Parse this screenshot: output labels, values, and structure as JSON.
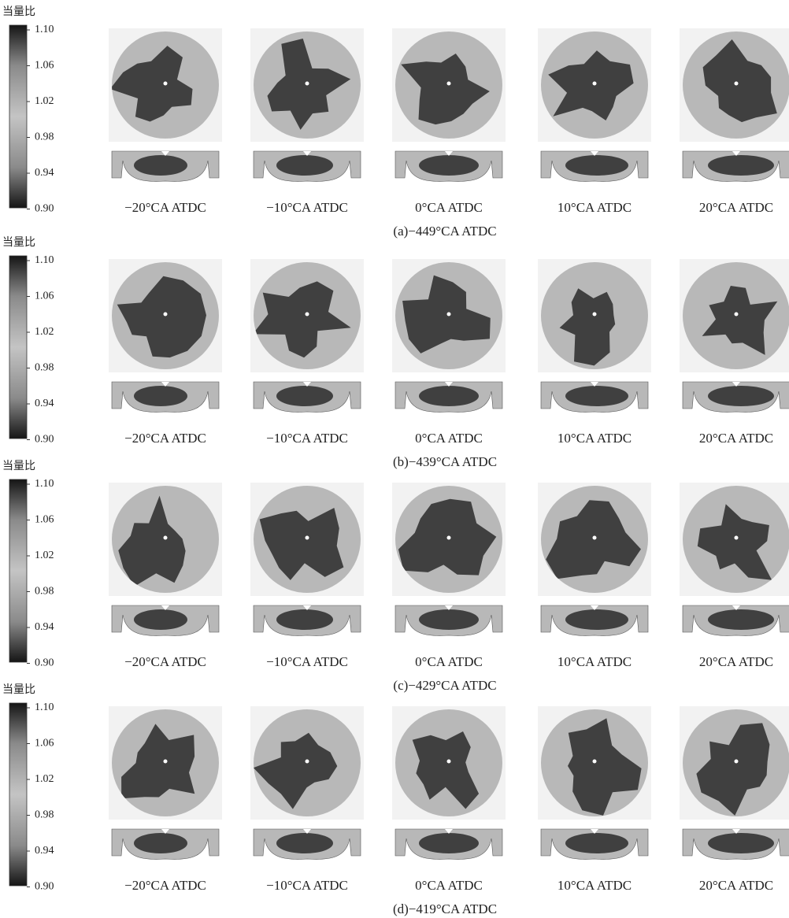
{
  "panels": [
    {
      "colorbar": {
        "title": "当量比",
        "ticks": [
          "1.10",
          "1.06",
          "1.02",
          "0.98",
          "0.94",
          "0.90"
        ]
      },
      "labels": [
        "−20°CA ATDC",
        "−10°CA ATDC",
        "0°CA ATDC",
        "10°CA ATDC",
        "20°CA ATDC"
      ],
      "caption": "(a)−449°CA ATDC"
    },
    {
      "colorbar": {
        "title": "当量比",
        "ticks": [
          "1.10",
          "1.06",
          "1.02",
          "0.98",
          "0.94",
          "0.90"
        ]
      },
      "labels": [
        "−20°CA ATDC",
        "−10°CA ATDC",
        "0°CA ATDC",
        "10°CA ATDC",
        "20°CA ATDC"
      ],
      "caption": "(b)−439°CA ATDC"
    },
    {
      "colorbar": {
        "title": "当量比",
        "ticks": [
          "1.10",
          "1.06",
          "1.02",
          "0.98",
          "0.94",
          "0.90"
        ]
      },
      "labels": [
        "−20°CA ATDC",
        "−10°CA ATDC",
        "0°CA ATDC",
        "10°CA ATDC",
        "20°CA ATDC"
      ],
      "caption": "(c)−429°CA ATDC"
    },
    {
      "colorbar": {
        "title": "当量比",
        "ticks": [
          "1.10",
          "1.06",
          "1.02",
          "0.98",
          "0.94",
          "0.90"
        ]
      },
      "labels": [
        "−20°CA ATDC",
        "−10°CA ATDC",
        "0°CA ATDC",
        "10°CA ATDC",
        "20°CA ATDC"
      ],
      "caption": "(d)−419°CA ATDC"
    }
  ]
}
